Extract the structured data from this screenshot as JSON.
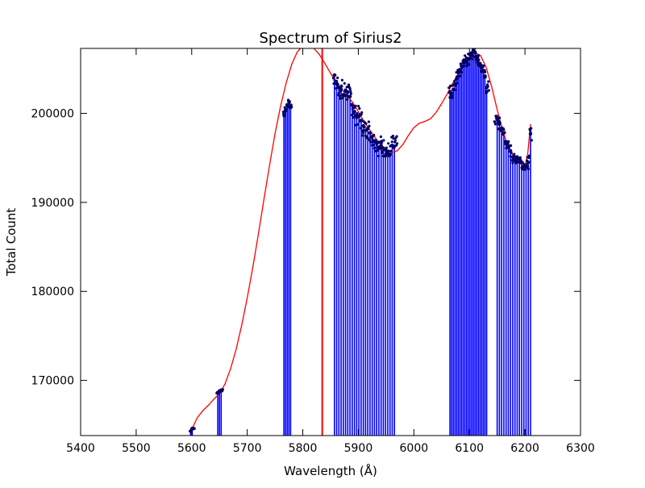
{
  "chart_data": {
    "type": "line",
    "title": "Spectrum of Sirius2",
    "xlabel": "Wavelength (Å)",
    "ylabel": "Total Count",
    "xlim": [
      5400,
      6300
    ],
    "ylim": [
      163800,
      207300
    ],
    "x_ticks": [
      5400,
      5500,
      5600,
      5700,
      5800,
      5900,
      6000,
      6100,
      6200,
      6300
    ],
    "y_ticks": [
      170000,
      180000,
      190000,
      200000
    ],
    "grid": false,
    "legend": "none",
    "colors": {
      "fit_curve": "#ff0000",
      "marker_line": "#ff0000",
      "stems": "#0000ff",
      "points": "#000066",
      "axes": "#000000"
    },
    "series": [
      {
        "kind": "fit_curve",
        "x": [
          5600,
          5610,
          5620,
          5630,
          5640,
          5650,
          5660,
          5670,
          5680,
          5690,
          5700,
          5710,
          5720,
          5730,
          5740,
          5750,
          5760,
          5770,
          5780,
          5790,
          5800,
          5810,
          5820,
          5830,
          5840,
          5850,
          5860,
          5870,
          5880,
          5890,
          5900,
          5910,
          5920,
          5930,
          5940,
          5950,
          5960,
          5970,
          5980,
          5990,
          6000,
          6010,
          6020,
          6030,
          6040,
          6050,
          6060,
          6070,
          6080,
          6090,
          6100,
          6110,
          6120,
          6130,
          6140,
          6150,
          6160,
          6170,
          6180,
          6190,
          6200,
          6205,
          6210
        ],
        "y": [
          164500,
          165800,
          166600,
          167200,
          167900,
          168500,
          169600,
          171300,
          173500,
          176200,
          179300,
          182700,
          186400,
          190300,
          194100,
          197700,
          200800,
          203400,
          205500,
          206900,
          207600,
          207700,
          207300,
          206600,
          205600,
          204500,
          203500,
          202700,
          202000,
          201200,
          200200,
          199100,
          198200,
          197300,
          196500,
          195900,
          195600,
          195800,
          196500,
          197500,
          198400,
          198900,
          199100,
          199400,
          200100,
          201100,
          202200,
          203400,
          204500,
          205500,
          206300,
          206800,
          206500,
          205200,
          203000,
          200400,
          198000,
          196300,
          195100,
          194400,
          194000,
          195500,
          198800
        ]
      }
    ],
    "marker_line_x": 5835,
    "stems": {
      "x": [
        5598,
        5601,
        5647,
        5650,
        5653,
        5766,
        5769,
        5772,
        5775,
        5778,
        5857,
        5861,
        5865,
        5869,
        5873,
        5877,
        5881,
        5885,
        5889,
        5893,
        5897,
        5901,
        5905,
        5909,
        5913,
        5917,
        5921,
        5925,
        5929,
        5933,
        5937,
        5941,
        5945,
        5949,
        5953,
        5957,
        5961,
        5965,
        6065,
        6068,
        6071,
        6074,
        6077,
        6080,
        6083,
        6086,
        6089,
        6092,
        6095,
        6098,
        6101,
        6104,
        6107,
        6110,
        6113,
        6116,
        6119,
        6122,
        6125,
        6128,
        6131,
        6150,
        6154,
        6158,
        6162,
        6166,
        6170,
        6174,
        6178,
        6182,
        6186,
        6190,
        6194,
        6198,
        6202,
        6206,
        6210
      ],
      "y": [
        164300,
        164600,
        168600,
        168800,
        168900,
        199900,
        200400,
        200900,
        201300,
        200800,
        204300,
        203400,
        202900,
        202700,
        202100,
        202600,
        202400,
        201900,
        200900,
        200200,
        199800,
        199700,
        199200,
        198600,
        198100,
        198300,
        197800,
        197400,
        196900,
        196700,
        196200,
        196400,
        196100,
        195900,
        195700,
        195400,
        196400,
        196300,
        202400,
        201900,
        202700,
        203300,
        203900,
        204600,
        204900,
        205300,
        205700,
        205900,
        205800,
        206100,
        206600,
        206800,
        207100,
        206900,
        206400,
        206000,
        205600,
        205100,
        204700,
        204200,
        202900,
        199300,
        198800,
        198300,
        197800,
        196700,
        196200,
        195800,
        195100,
        194700,
        195100,
        194900,
        194500,
        194100,
        194000,
        194500,
        197700
      ]
    },
    "point_groups": [
      [
        5597,
        5605,
        164100,
        164800
      ],
      [
        5645,
        5656,
        168300,
        169100
      ],
      [
        5765,
        5780,
        199200,
        201500
      ],
      [
        5855,
        5970,
        195200,
        204300
      ],
      [
        6063,
        6135,
        201500,
        207300
      ],
      [
        6145,
        6212,
        193700,
        199700
      ]
    ]
  }
}
